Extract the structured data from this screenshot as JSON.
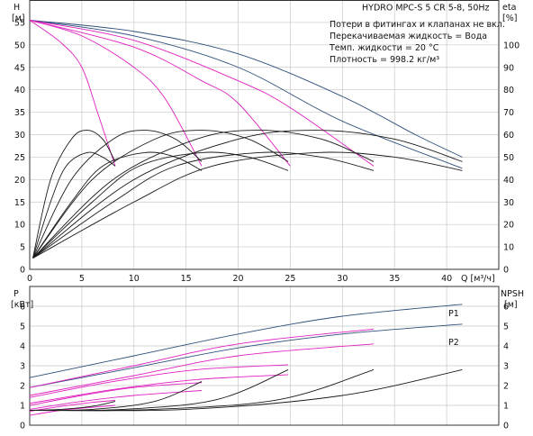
{
  "colors": {
    "blue": "#2f4f7a",
    "magenta": "#e020c0",
    "black": "#1a1a1a",
    "grid": "#c8c8c8",
    "background": "#ffffff"
  },
  "title": "HYDRO MPC-S 5 CR 5-8, 50Hz",
  "info_lines": [
    "Потери в фитингах и клапанах не вкл.",
    "Перекачиваемая жидкость = Вода",
    "Темп. жидкости = 20 °C",
    "Плотность = 998.2 кг/м³"
  ],
  "chart_data": [
    {
      "type": "line",
      "panel": "top",
      "ylabel": "H",
      "yunit": "[м]",
      "y2label": "eta",
      "y2unit": "[%]",
      "xlabel": "Q [м³/ч]",
      "xlim": [
        0,
        45
      ],
      "ylim": [
        0,
        60
      ],
      "y2lim": [
        0,
        120
      ],
      "xticks": [
        0,
        5,
        10,
        15,
        20,
        25,
        30,
        35,
        40
      ],
      "yticks": [
        0,
        5,
        10,
        15,
        20,
        25,
        30,
        35,
        40,
        45,
        50,
        55
      ],
      "y2ticks": [
        0,
        10,
        20,
        30,
        40,
        50,
        60,
        70,
        80,
        90,
        100
      ],
      "grid": true,
      "series": [
        {
          "kind": "head",
          "color": "blue",
          "points": [
            [
              0,
              55.5
            ],
            [
              10,
              53.0
            ],
            [
              20,
              48.0
            ],
            [
              30,
              38.5
            ],
            [
              37,
              30.0
            ],
            [
              41.5,
              25.0
            ]
          ]
        },
        {
          "kind": "head",
          "color": "blue",
          "points": [
            [
              0,
              55.5
            ],
            [
              10,
              52.0
            ],
            [
              20,
              45.0
            ],
            [
              30,
              33.0
            ],
            [
              41.5,
              22.5
            ]
          ]
        },
        {
          "kind": "head",
          "color": "magenta",
          "points": [
            [
              0,
              55.5
            ],
            [
              10,
              51.0
            ],
            [
              20,
              42.0
            ],
            [
              25,
              36.0
            ],
            [
              33,
              23.0
            ]
          ]
        },
        {
          "kind": "head",
          "color": "magenta",
          "points": [
            [
              0,
              55.5
            ],
            [
              10,
              49.5
            ],
            [
              16.5,
              42.0
            ],
            [
              20,
              37.0
            ],
            [
              25,
              23.0
            ]
          ]
        },
        {
          "kind": "head",
          "color": "magenta",
          "points": [
            [
              0,
              55.5
            ],
            [
              5,
              52.0
            ],
            [
              10,
              45.0
            ],
            [
              13,
              38.0
            ],
            [
              16.5,
              23.0
            ]
          ]
        },
        {
          "kind": "head",
          "color": "magenta",
          "points": [
            [
              0,
              55.5
            ],
            [
              3,
              50.5
            ],
            [
              5,
              45.0
            ],
            [
              6.5,
              35.0
            ],
            [
              8.2,
              23.0
            ]
          ]
        },
        {
          "kind": "eta",
          "color": "black",
          "points": [
            [
              0.3,
              5
            ],
            [
              2,
              40
            ],
            [
              4,
              58
            ],
            [
              5.5,
              62
            ],
            [
              7,
              58
            ],
            [
              8.2,
              48
            ]
          ]
        },
        {
          "kind": "eta",
          "color": "black",
          "points": [
            [
              0.3,
              5
            ],
            [
              4,
              40
            ],
            [
              8,
              58
            ],
            [
              11,
              62
            ],
            [
              14,
              58
            ],
            [
              16.5,
              48
            ]
          ]
        },
        {
          "kind": "eta",
          "color": "black",
          "points": [
            [
              0.3,
              5
            ],
            [
              6,
              40
            ],
            [
              12,
              58
            ],
            [
              16.5,
              62
            ],
            [
              21,
              58
            ],
            [
              24.8,
              48
            ]
          ]
        },
        {
          "kind": "eta",
          "color": "black",
          "points": [
            [
              0.3,
              5
            ],
            [
              8,
              40
            ],
            [
              16,
              58
            ],
            [
              22,
              62
            ],
            [
              28,
              58
            ],
            [
              33,
              48
            ]
          ]
        },
        {
          "kind": "eta",
          "color": "black",
          "points": [
            [
              0.3,
              5
            ],
            [
              10,
              40
            ],
            [
              20,
              58
            ],
            [
              27.5,
              62
            ],
            [
              35,
              58
            ],
            [
              41.5,
              48
            ]
          ]
        },
        {
          "kind": "eta",
          "color": "black",
          "points": [
            [
              0.3,
              5
            ],
            [
              2,
              30
            ],
            [
              3.5,
              46
            ],
            [
              5.5,
              52
            ],
            [
              7,
              50
            ],
            [
              8.2,
              46
            ]
          ]
        },
        {
          "kind": "eta",
          "color": "black",
          "points": [
            [
              0.3,
              5
            ],
            [
              4,
              30
            ],
            [
              7,
              46
            ],
            [
              11,
              52
            ],
            [
              14,
              50
            ],
            [
              16.5,
              44
            ]
          ]
        },
        {
          "kind": "eta",
          "color": "black",
          "points": [
            [
              0.3,
              5
            ],
            [
              6,
              30
            ],
            [
              10.5,
              46
            ],
            [
              16.5,
              52
            ],
            [
              21,
              50
            ],
            [
              24.8,
              44
            ]
          ]
        },
        {
          "kind": "eta",
          "color": "black",
          "points": [
            [
              0.3,
              5
            ],
            [
              8,
              30
            ],
            [
              14,
              46
            ],
            [
              22,
              52
            ],
            [
              28,
              50
            ],
            [
              33,
              44
            ]
          ]
        },
        {
          "kind": "eta",
          "color": "black",
          "points": [
            [
              0.3,
              5
            ],
            [
              10,
              30
            ],
            [
              17.5,
              46
            ],
            [
              27.5,
              52
            ],
            [
              35,
              50
            ],
            [
              41.5,
              44
            ]
          ]
        }
      ]
    },
    {
      "type": "line",
      "panel": "bottom",
      "ylabel": "P",
      "yunit": "[кВт]",
      "y2label": "NPSH",
      "y2unit": "[м]",
      "xlim": [
        0,
        45
      ],
      "ylim": [
        0,
        7
      ],
      "y2lim": [
        0,
        7
      ],
      "yticks": [
        0,
        1,
        2,
        3,
        4,
        5,
        6
      ],
      "y2ticks": [
        0,
        1,
        2,
        3,
        4,
        5,
        6
      ],
      "grid": true,
      "series": [
        {
          "kind": "power",
          "name": "P1",
          "color": "blue",
          "points": [
            [
              0,
              2.4
            ],
            [
              10,
              3.5
            ],
            [
              20,
              4.6
            ],
            [
              30,
              5.5
            ],
            [
              41.5,
              6.1
            ]
          ]
        },
        {
          "kind": "power",
          "name": "P2",
          "color": "blue",
          "points": [
            [
              0,
              1.9
            ],
            [
              10,
              2.9
            ],
            [
              20,
              3.9
            ],
            [
              30,
              4.6
            ],
            [
              41.5,
              5.1
            ]
          ]
        },
        {
          "kind": "power",
          "color": "magenta",
          "points": [
            [
              0,
              1.9
            ],
            [
              10,
              3.0
            ],
            [
              20,
              4.1
            ],
            [
              33,
              4.85
            ]
          ]
        },
        {
          "kind": "power",
          "color": "magenta",
          "points": [
            [
              0,
              1.5
            ],
            [
              10,
              2.5
            ],
            [
              20,
              3.5
            ],
            [
              33,
              4.1
            ]
          ]
        },
        {
          "kind": "power",
          "color": "magenta",
          "points": [
            [
              0,
              1.4
            ],
            [
              8,
              2.2
            ],
            [
              16,
              2.8
            ],
            [
              24.8,
              3.05
            ]
          ]
        },
        {
          "kind": "power",
          "color": "magenta",
          "points": [
            [
              0,
              1.1
            ],
            [
              8,
              1.8
            ],
            [
              16,
              2.3
            ],
            [
              24.8,
              2.55
            ]
          ]
        },
        {
          "kind": "power",
          "color": "magenta",
          "points": [
            [
              0,
              1.0
            ],
            [
              5,
              1.5
            ],
            [
              10,
              1.9
            ],
            [
              16.5,
              2.15
            ]
          ]
        },
        {
          "kind": "power",
          "color": "magenta",
          "points": [
            [
              0,
              0.8
            ],
            [
              5,
              1.2
            ],
            [
              10,
              1.5
            ],
            [
              16.5,
              1.75
            ]
          ]
        },
        {
          "kind": "power",
          "color": "magenta",
          "points": [
            [
              0,
              0.7
            ],
            [
              3,
              0.95
            ],
            [
              6,
              1.15
            ],
            [
              8.2,
              1.25
            ]
          ]
        },
        {
          "kind": "power",
          "color": "magenta",
          "points": [
            [
              0,
              0.5
            ],
            [
              3,
              0.75
            ],
            [
              6,
              0.9
            ],
            [
              8.2,
              1.0
            ]
          ]
        },
        {
          "kind": "npsh",
          "color": "black",
          "points": [
            [
              0,
              0.75
            ],
            [
              3,
              0.8
            ],
            [
              6,
              0.95
            ],
            [
              8.2,
              1.2
            ]
          ]
        },
        {
          "kind": "npsh",
          "color": "black",
          "points": [
            [
              0,
              0.75
            ],
            [
              6,
              0.8
            ],
            [
              12,
              1.2
            ],
            [
              16.5,
              2.2
            ]
          ]
        },
        {
          "kind": "npsh",
          "color": "black",
          "points": [
            [
              0,
              0.75
            ],
            [
              9,
              0.8
            ],
            [
              18,
              1.3
            ],
            [
              24.8,
              2.8
            ]
          ]
        },
        {
          "kind": "npsh",
          "color": "black",
          "points": [
            [
              0,
              0.75
            ],
            [
              12,
              0.8
            ],
            [
              24,
              1.3
            ],
            [
              33,
              2.8
            ]
          ]
        },
        {
          "kind": "npsh",
          "color": "black",
          "points": [
            [
              0,
              0.75
            ],
            [
              15,
              0.8
            ],
            [
              30,
              1.5
            ],
            [
              41.5,
              2.8
            ]
          ]
        }
      ]
    }
  ]
}
